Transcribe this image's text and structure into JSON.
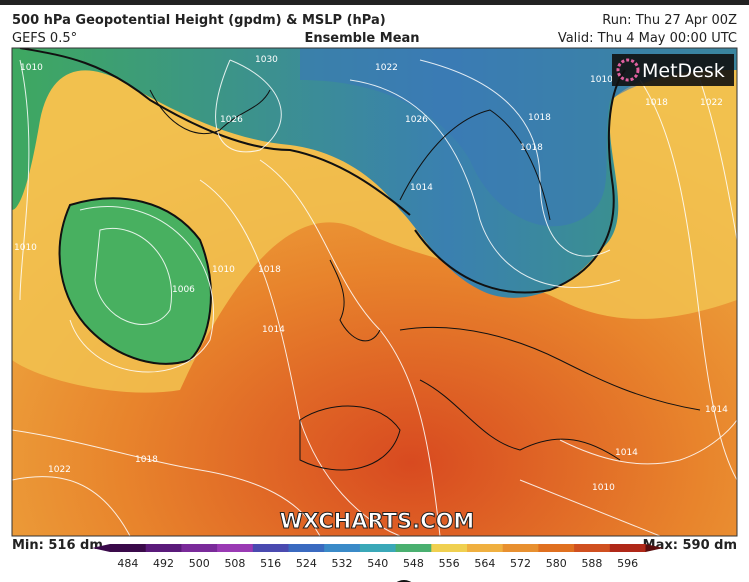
{
  "header": {
    "title": "500 hPa Geopotential Height (gpdm) & MSLP (hPa)",
    "model": "GEFS 0.5°",
    "subtitle": "Ensemble Mean",
    "run": "Run: Thu 27 Apr 00Z",
    "valid": "Valid: Thu 4 May 00:00 UTC"
  },
  "map": {
    "logo": "MetDesk",
    "watermark": "WXCHARTS.COM",
    "contour_labels": [
      "1030",
      "1026",
      "1022",
      "1026",
      "1018",
      "1014",
      "1010",
      "1006",
      "1010",
      "1018",
      "1014",
      "1018",
      "1022",
      "1018",
      "1022",
      "1010",
      "1014",
      "1014",
      "1010",
      "1018",
      "1010"
    ]
  },
  "colorbar": {
    "min": "Min: 516 dm",
    "max": "Max: 590 dm",
    "labels": [
      484,
      492,
      500,
      508,
      516,
      524,
      532,
      540,
      548,
      556,
      564,
      572,
      580,
      588,
      596
    ],
    "colors": [
      "#3a0a4a",
      "#5a1a7a",
      "#7a2a9a",
      "#9a3ab4",
      "#4a4ab0",
      "#3a6ac0",
      "#3a8ac8",
      "#3aa8b8",
      "#4ab070",
      "#f0d050",
      "#f0b040",
      "#e89030",
      "#e07020",
      "#d05020",
      "#b02818"
    ]
  }
}
